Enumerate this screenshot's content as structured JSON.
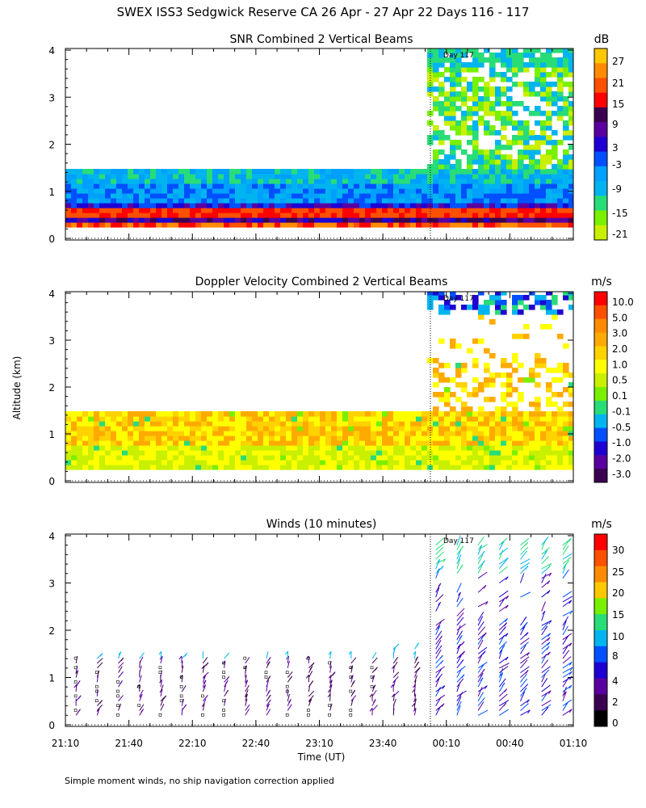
{
  "header": {
    "title": "SWEX ISS3 Sedgwick Reserve CA  26 Apr - 27 Apr 22 Days 116 - 117"
  },
  "axes": {
    "ylabel": "Altitude (km)",
    "xlabel": "Time (UT)",
    "xticks": [
      "21:10",
      "21:40",
      "22:10",
      "22:40",
      "23:10",
      "23:40",
      "00:10",
      "00:40",
      "01:10"
    ],
    "yticks": [
      "0",
      "1",
      "2",
      "3",
      "4"
    ],
    "day_marker": "Day 117"
  },
  "panels": {
    "snr": {
      "title": "SNR Combined 2 Vertical Beams",
      "unit": "dB"
    },
    "doppler": {
      "title": "Doppler Velocity Combined 2 Vertical Beams",
      "unit": "m/s"
    },
    "winds": {
      "title": "Winds (10 minutes)",
      "unit": "m/s"
    }
  },
  "colors": {
    "snr": [
      "#c8f000",
      "#78f000",
      "#28dc78",
      "#00b4f0",
      "#00a0ff",
      "#0050ff",
      "#1e00d2",
      "#5a00a0",
      "#3c0050",
      "#ff0000",
      "#ff5000",
      "#ff8c00",
      "#ffc800"
    ],
    "doppler": [
      "#ff0000",
      "#ff5000",
      "#ff8c00",
      "#ffaa00",
      "#ffd200",
      "#ffff00",
      "#c8f000",
      "#78f000",
      "#28dc78",
      "#00b4f0",
      "#0050ff",
      "#1e00d2",
      "#5a00a0",
      "#3c0050"
    ],
    "winds": [
      "#000000",
      "#3c0050",
      "#5a00a0",
      "#1e00d2",
      "#0050ff",
      "#00b4f0",
      "#28dc78",
      "#78f000",
      "#ffc800",
      "#ff8c00",
      "#ff5000",
      "#ff0000"
    ]
  },
  "chart_data": [
    {
      "type": "heatmap",
      "title": "SNR Combined 2 Vertical Beams",
      "xlabel": "Time (UT)",
      "ylabel": "Altitude (km)",
      "xlim": [
        "21:10",
        "01:10"
      ],
      "ylim": [
        0,
        4
      ],
      "colorbar": {
        "unit": "dB",
        "ticks": [
          -21,
          -15,
          -9,
          -3,
          3,
          9,
          15,
          21,
          27
        ]
      },
      "coverage": [
        {
          "time_range": [
            "21:10",
            "00:00"
          ],
          "altitude_km": [
            0.15,
            1.4
          ]
        },
        {
          "time_range": [
            "00:00",
            "01:10"
          ],
          "altitude_km": [
            0.15,
            4.0
          ]
        }
      ]
    },
    {
      "type": "heatmap",
      "title": "Doppler Velocity Combined 2 Vertical Beams",
      "xlabel": "Time (UT)",
      "ylabel": "Altitude (km)",
      "xlim": [
        "21:10",
        "01:10"
      ],
      "ylim": [
        0,
        4
      ],
      "colorbar": {
        "unit": "m/s",
        "ticks": [
          10.0,
          5.0,
          3.0,
          2.0,
          1.0,
          0.5,
          0.1,
          -0.1,
          -0.5,
          -1.0,
          -2.0,
          -3.0
        ]
      },
      "coverage": [
        {
          "time_range": [
            "21:10",
            "00:00"
          ],
          "altitude_km": [
            0.15,
            1.4
          ]
        },
        {
          "time_range": [
            "00:00",
            "01:10"
          ],
          "altitude_km": [
            0.15,
            4.0
          ]
        }
      ]
    },
    {
      "type": "scatter",
      "title": "Winds (10 minutes)",
      "xlabel": "Time (UT)",
      "ylabel": "Altitude (km)",
      "xlim": [
        "21:10",
        "01:10"
      ],
      "ylim": [
        0,
        4
      ],
      "colorbar": {
        "unit": "m/s",
        "ticks": [
          0,
          2,
          4,
          8,
          10,
          15,
          20,
          25,
          30
        ]
      },
      "profile_times": [
        "21:15",
        "21:25",
        "21:35",
        "21:45",
        "21:55",
        "22:05",
        "22:15",
        "22:25",
        "22:35",
        "22:45",
        "22:55",
        "23:05",
        "23:15",
        "23:25",
        "23:35",
        "23:45",
        "23:55",
        "00:05",
        "00:15",
        "00:25",
        "00:35",
        "00:45",
        "00:55",
        "01:05"
      ]
    }
  ],
  "footnote": "Simple moment winds, no ship navigation correction applied"
}
